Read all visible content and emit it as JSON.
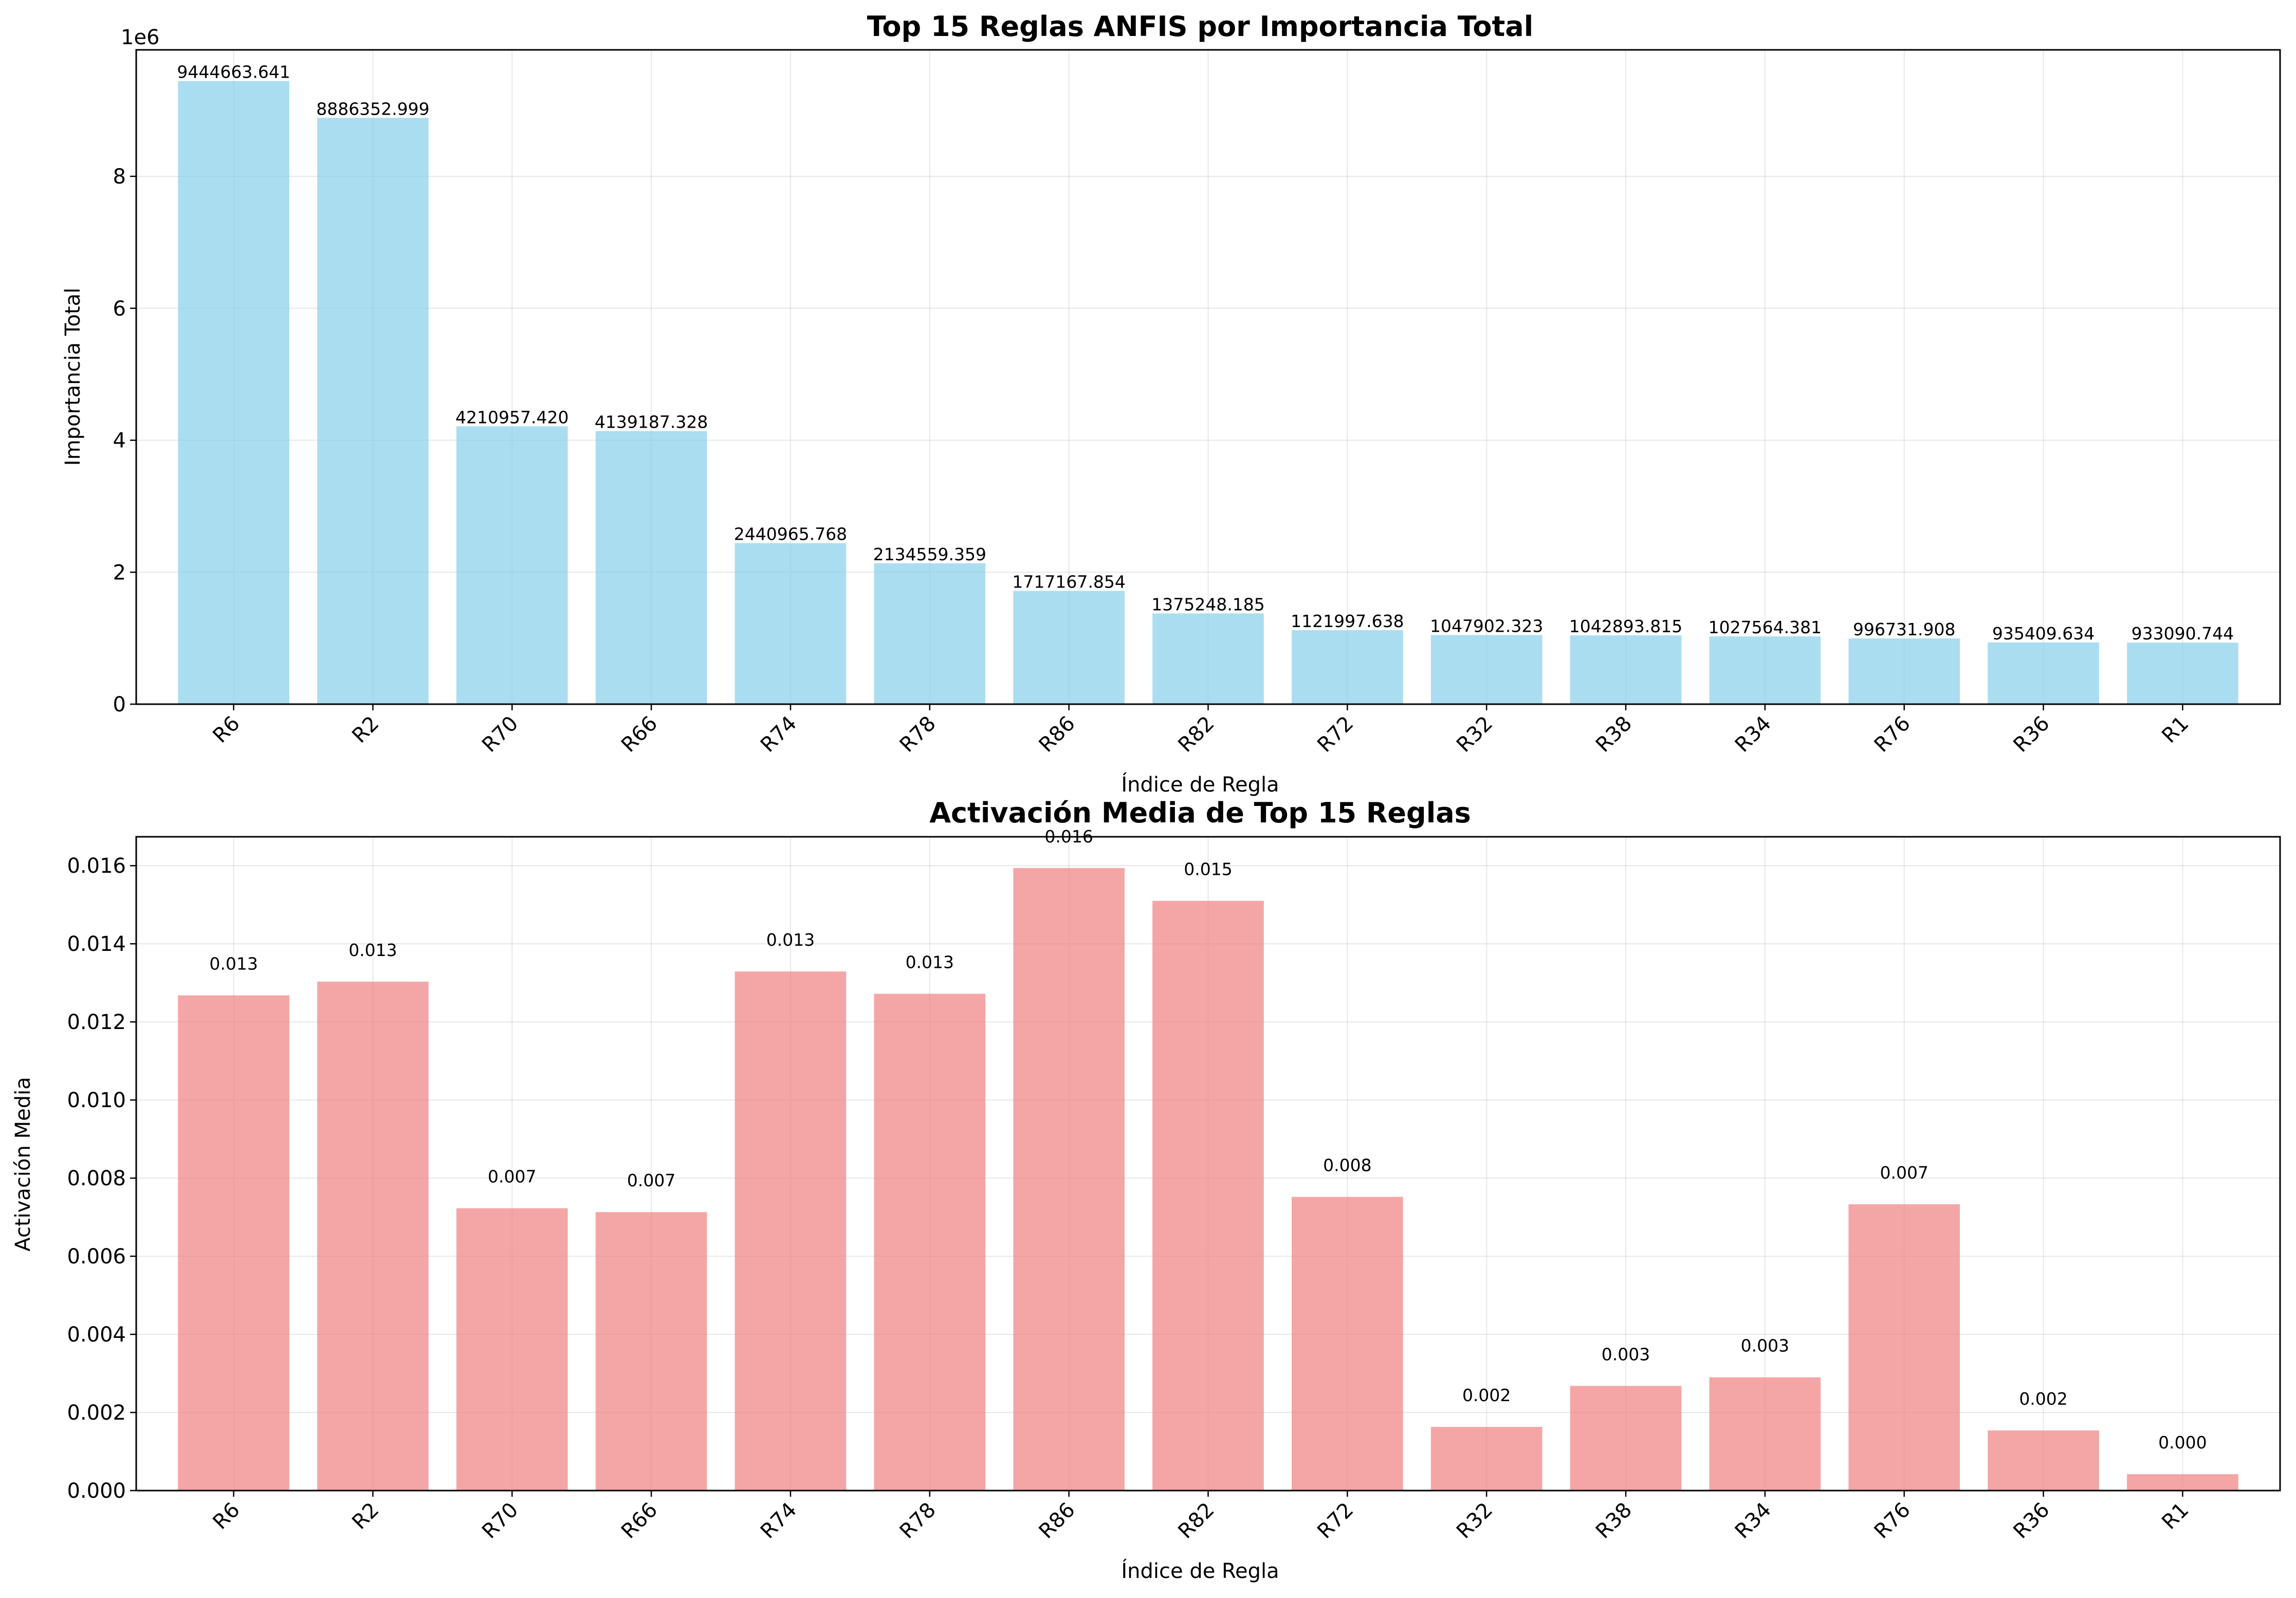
{
  "chart_data": [
    {
      "type": "bar",
      "title": "Top 15 Reglas ANFIS por Importancia Total",
      "xlabel": "Índice de Regla",
      "ylabel": "Importancia Total",
      "scale_label": "1e6",
      "scale": 1000000,
      "categories": [
        "R6",
        "R2",
        "R70",
        "R66",
        "R74",
        "R78",
        "R86",
        "R82",
        "R72",
        "R32",
        "R38",
        "R34",
        "R76",
        "R36",
        "R1"
      ],
      "values": [
        9444663.641,
        8886352.999,
        4210957.42,
        4139187.328,
        2440965.768,
        2134559.359,
        1717167.854,
        1375248.185,
        1121997.638,
        1047902.323,
        1042893.815,
        1027564.381,
        996731.908,
        935409.634,
        933090.744
      ],
      "value_labels": [
        "9444663.641",
        "8886352.999",
        "4210957.420",
        "4139187.328",
        "2440965.768",
        "2134559.359",
        "1717167.854",
        "1375248.185",
        "1121997.638",
        "1047902.323",
        "1042893.815",
        "1027564.381",
        "996731.908",
        "935409.634",
        "933090.744"
      ],
      "yticks": [
        0,
        2000000,
        4000000,
        6000000,
        8000000
      ],
      "ytick_labels": [
        "0",
        "2",
        "4",
        "6",
        "8"
      ],
      "ylim": [
        0,
        9916896.8
      ],
      "color": "#87CEEB",
      "grid": true
    },
    {
      "type": "bar",
      "title": "Activación Media de Top 15 Reglas",
      "xlabel": "Índice de Regla",
      "ylabel": "Activación Media",
      "categories": [
        "R6",
        "R2",
        "R70",
        "R66",
        "R74",
        "R78",
        "R86",
        "R82",
        "R72",
        "R32",
        "R38",
        "R34",
        "R76",
        "R36",
        "R1"
      ],
      "values": [
        0.01268,
        0.01303,
        0.00723,
        0.00713,
        0.01329,
        0.01272,
        0.01594,
        0.0151,
        0.00752,
        0.00163,
        0.00268,
        0.0029,
        0.00733,
        0.00154,
        0.00042
      ],
      "value_labels": [
        "0.013",
        "0.013",
        "0.007",
        "0.007",
        "0.013",
        "0.013",
        "0.016",
        "0.015",
        "0.008",
        "0.002",
        "0.003",
        "0.003",
        "0.007",
        "0.002",
        "0.000"
      ],
      "yticks": [
        0,
        0.002,
        0.004,
        0.006,
        0.008,
        0.01,
        0.012,
        0.014,
        0.016
      ],
      "ytick_labels": [
        "0.000",
        "0.002",
        "0.004",
        "0.006",
        "0.008",
        "0.010",
        "0.012",
        "0.014",
        "0.016"
      ],
      "ylim": [
        0,
        0.01674
      ],
      "color": "#F08080",
      "grid": true
    }
  ]
}
